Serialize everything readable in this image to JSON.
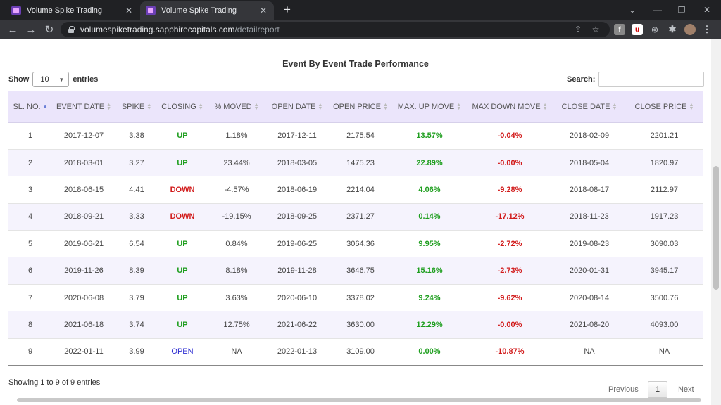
{
  "browser": {
    "tabs": [
      {
        "title": "Volume Spike Trading"
      },
      {
        "title": "Volume Spike Trading"
      }
    ],
    "url_host": "volumespiketrading.sapphirecapitals.com",
    "url_path": "/detailreport"
  },
  "page": {
    "heading": "Event By Event Trade Performance",
    "show_label": "Show",
    "entries_value": "10",
    "entries_label": "entries",
    "search_label": "Search:",
    "search_value": "",
    "info": "Showing 1 to 9 of 9 entries",
    "pagination": {
      "previous": "Previous",
      "current": "1",
      "next": "Next"
    }
  },
  "table": {
    "columns": [
      "SL. NO.",
      "EVENT DATE",
      "SPIKE",
      "CLOSING",
      "% MOVED",
      "OPEN DATE",
      "OPEN PRICE",
      "MAX. UP MOVE",
      "MAX DOWN MOVE",
      "CLOSE DATE",
      "CLOSE PRICE"
    ],
    "rows": [
      {
        "sl": "1",
        "event_date": "2017-12-07",
        "spike": "3.38",
        "closing": "UP",
        "moved": "1.18%",
        "open_date": "2017-12-11",
        "open_price": "2175.54",
        "max_up": "13.57%",
        "max_down": "-0.04%",
        "close_date": "2018-02-09",
        "close_price": "2201.21"
      },
      {
        "sl": "2",
        "event_date": "2018-03-01",
        "spike": "3.27",
        "closing": "UP",
        "moved": "23.44%",
        "open_date": "2018-03-05",
        "open_price": "1475.23",
        "max_up": "22.89%",
        "max_down": "-0.00%",
        "close_date": "2018-05-04",
        "close_price": "1820.97"
      },
      {
        "sl": "3",
        "event_date": "2018-06-15",
        "spike": "4.41",
        "closing": "DOWN",
        "moved": "-4.57%",
        "open_date": "2018-06-19",
        "open_price": "2214.04",
        "max_up": "4.06%",
        "max_down": "-9.28%",
        "close_date": "2018-08-17",
        "close_price": "2112.97"
      },
      {
        "sl": "4",
        "event_date": "2018-09-21",
        "spike": "3.33",
        "closing": "DOWN",
        "moved": "-19.15%",
        "open_date": "2018-09-25",
        "open_price": "2371.27",
        "max_up": "0.14%",
        "max_down": "-17.12%",
        "close_date": "2018-11-23",
        "close_price": "1917.23"
      },
      {
        "sl": "5",
        "event_date": "2019-06-21",
        "spike": "6.54",
        "closing": "UP",
        "moved": "0.84%",
        "open_date": "2019-06-25",
        "open_price": "3064.36",
        "max_up": "9.95%",
        "max_down": "-2.72%",
        "close_date": "2019-08-23",
        "close_price": "3090.03"
      },
      {
        "sl": "6",
        "event_date": "2019-11-26",
        "spike": "8.39",
        "closing": "UP",
        "moved": "8.18%",
        "open_date": "2019-11-28",
        "open_price": "3646.75",
        "max_up": "15.16%",
        "max_down": "-2.73%",
        "close_date": "2020-01-31",
        "close_price": "3945.17"
      },
      {
        "sl": "7",
        "event_date": "2020-06-08",
        "spike": "3.79",
        "closing": "UP",
        "moved": "3.63%",
        "open_date": "2020-06-10",
        "open_price": "3378.02",
        "max_up": "9.24%",
        "max_down": "-9.62%",
        "close_date": "2020-08-14",
        "close_price": "3500.76"
      },
      {
        "sl": "8",
        "event_date": "2021-06-18",
        "spike": "3.74",
        "closing": "UP",
        "moved": "12.75%",
        "open_date": "2021-06-22",
        "open_price": "3630.00",
        "max_up": "12.29%",
        "max_down": "-0.00%",
        "close_date": "2021-08-20",
        "close_price": "4093.00"
      },
      {
        "sl": "9",
        "event_date": "2022-01-11",
        "spike": "3.99",
        "closing": "OPEN",
        "moved": "NA",
        "open_date": "2022-01-13",
        "open_price": "3109.00",
        "max_up": "0.00%",
        "max_down": "-10.87%",
        "close_date": "NA",
        "close_price": "NA"
      }
    ]
  },
  "colors": {
    "header_bg": "#ebe5fb",
    "up": "#1e9e1e",
    "down": "#d11a1a",
    "open": "#2b2bd1"
  }
}
